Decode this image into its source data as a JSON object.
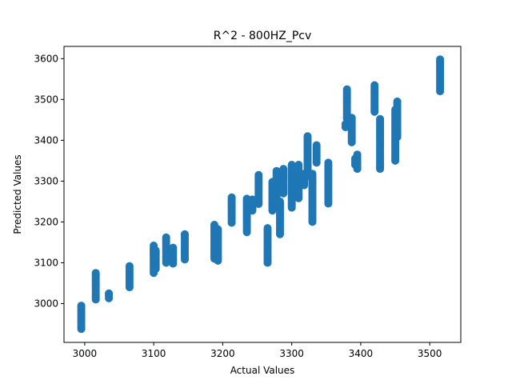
{
  "chart_data": {
    "type": "scatter",
    "title": "R^2 - 800HZ_Pcv",
    "xlabel": "Actual Values",
    "ylabel": "Predicted Values",
    "xlim": [
      2970,
      3545
    ],
    "ylim": [
      2905,
      3630
    ],
    "xticks": [
      3000,
      3100,
      3200,
      3300,
      3400,
      3500
    ],
    "yticks": [
      3000,
      3100,
      3200,
      3300,
      3400,
      3500,
      3600
    ],
    "grid": false,
    "legend": "none",
    "marker_color": "#1f77b4",
    "columns": [
      [
        2995,
        2938,
        2995
      ],
      [
        3016,
        3010,
        3075
      ],
      [
        3035,
        3013,
        3025
      ],
      [
        3065,
        3040,
        3092
      ],
      [
        3100,
        3075,
        3142
      ],
      [
        3103,
        3085,
        3130
      ],
      [
        3118,
        3100,
        3162
      ],
      [
        3128,
        3098,
        3137
      ],
      [
        3145,
        3108,
        3170
      ],
      [
        3188,
        3110,
        3193
      ],
      [
        3193,
        3105,
        3182
      ],
      [
        3213,
        3198,
        3260
      ],
      [
        3235,
        3175,
        3257
      ],
      [
        3243,
        3228,
        3255
      ],
      [
        3252,
        3244,
        3315
      ],
      [
        3265,
        3100,
        3185
      ],
      [
        3272,
        3228,
        3298
      ],
      [
        3278,
        3240,
        3325
      ],
      [
        3283,
        3170,
        3250
      ],
      [
        3288,
        3270,
        3330
      ],
      [
        3300,
        3235,
        3340
      ],
      [
        3305,
        3280,
        3325
      ],
      [
        3310,
        3258,
        3340
      ],
      [
        3318,
        3290,
        3318
      ],
      [
        3323,
        3312,
        3410
      ],
      [
        3330,
        3200,
        3318
      ],
      [
        3336,
        3345,
        3388
      ],
      [
        3353,
        3245,
        3345
      ],
      [
        3378,
        3432,
        3440
      ],
      [
        3380,
        3453,
        3525
      ],
      [
        3387,
        3395,
        3455
      ],
      [
        3392,
        3340,
        3355
      ],
      [
        3395,
        3330,
        3365
      ],
      [
        3420,
        3470,
        3535
      ],
      [
        3428,
        3330,
        3452
      ],
      [
        3450,
        3350,
        3475
      ],
      [
        3453,
        3408,
        3495
      ],
      [
        3515,
        3520,
        3598
      ]
    ]
  }
}
